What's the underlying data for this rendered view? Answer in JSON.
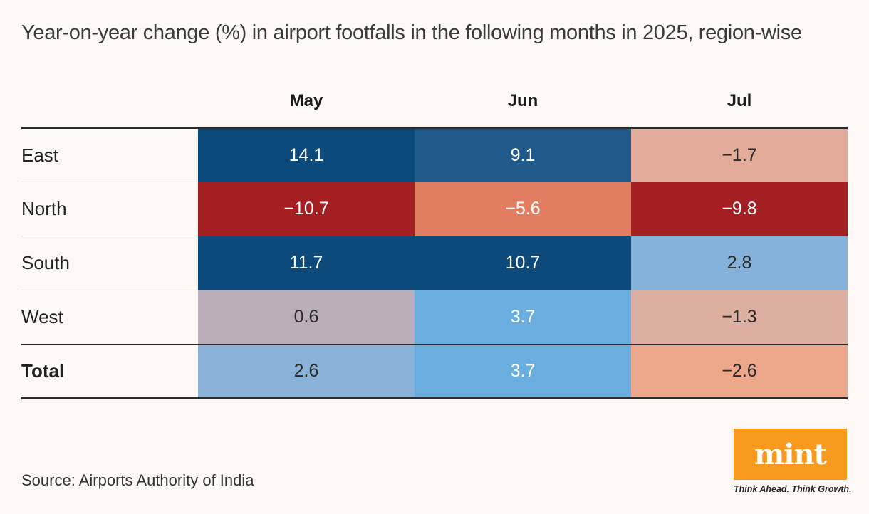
{
  "title": "Year-on-year change (%) in airport footfalls in the following months in 2025, region-wise",
  "source": "Source: Airports Authority of India",
  "brand": {
    "logo_text": "mint",
    "tagline": "Think Ahead. Think Growth.",
    "logo_color": "#f79a1e"
  },
  "colors": {
    "strong_positive": "#0b4a7b",
    "positive": "#1f5a8b",
    "mild_positive": "#84b2da",
    "light_positive": "#6aaedf",
    "neutral": "#bbaebb",
    "mild_negative": "#e2ab9a",
    "negative": "#e17d60",
    "strong_negative": "#a41f22"
  },
  "chart_data": {
    "type": "heatmap",
    "title": "Year-on-year change (%) in airport footfalls in the following months in 2025, region-wise",
    "columns": [
      "May",
      "Jun",
      "Jul"
    ],
    "rows": [
      {
        "region": "East",
        "values": [
          "14.1",
          "9.1",
          "−1.7"
        ],
        "colors": [
          "#0b4a7b",
          "#1f5a8b",
          "#e2ab9a"
        ],
        "text_colors": [
          "#ffffff",
          "#ffffff",
          "#2a2a2a"
        ]
      },
      {
        "region": "North",
        "values": [
          "−10.7",
          "−5.6",
          "−9.8"
        ],
        "colors": [
          "#a41f22",
          "#e17d60",
          "#a41f22"
        ],
        "text_colors": [
          "#ffffff",
          "#ffffff",
          "#ffffff"
        ]
      },
      {
        "region": "South",
        "values": [
          "11.7",
          "10.7",
          "2.8"
        ],
        "colors": [
          "#0b4a7b",
          "#0b4a7b",
          "#84b2da"
        ],
        "text_colors": [
          "#ffffff",
          "#ffffff",
          "#2a2a2a"
        ]
      },
      {
        "region": "West",
        "values": [
          "0.6",
          "3.7",
          "−1.3"
        ],
        "colors": [
          "#bbaebb",
          "#6aaedf",
          "#dcafa1"
        ],
        "text_colors": [
          "#2a2a2a",
          "#ffffff",
          "#2a2a2a"
        ]
      },
      {
        "region": "Total",
        "values": [
          "2.6",
          "3.7",
          "−2.6"
        ],
        "colors": [
          "#8ab2d9",
          "#6aaedf",
          "#eda88c"
        ],
        "text_colors": [
          "#2a2a2a",
          "#ffffff",
          "#2a2a2a"
        ]
      }
    ]
  }
}
